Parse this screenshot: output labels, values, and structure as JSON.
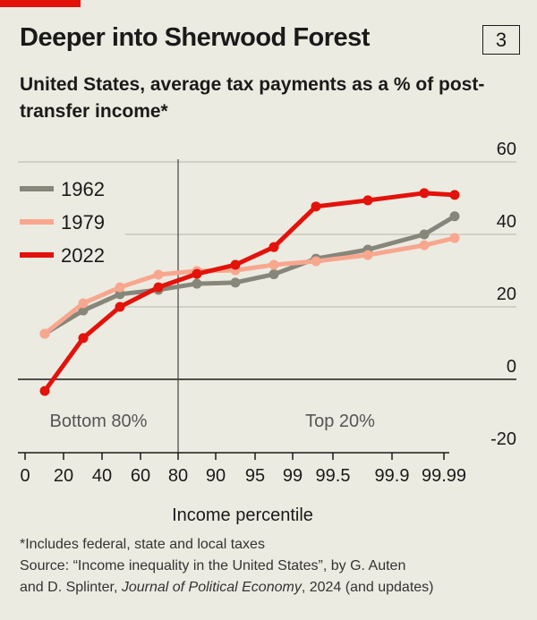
{
  "header": {
    "title": "Deeper into Sherwood Forest",
    "badge": "3",
    "subtitle": "United States, average tax payments as a % of post-transfer income*"
  },
  "chart_data": {
    "type": "line",
    "title": "Deeper into Sherwood Forest",
    "subtitle": "United States, average tax payments as a % of post-transfer income*",
    "xlabel": "Income percentile",
    "x_ticks": [
      "0",
      "20",
      "40",
      "60",
      "80",
      "90",
      "95",
      "99",
      "99.5",
      "99.9",
      "99.99"
    ],
    "y_ticks": [
      60,
      40,
      20,
      0,
      -20
    ],
    "ylim": [
      -20,
      60
    ],
    "grid": true,
    "legend": "top-left",
    "region_labels": [
      "Bottom 80%",
      "Top 20%"
    ],
    "series": [
      {
        "name": "1962",
        "color": "#86867a",
        "values": [
          12.6,
          19,
          23.5,
          24.7,
          26.4,
          26.7,
          29,
          33.3,
          35.8,
          40,
          45
        ]
      },
      {
        "name": "1979",
        "color": "#f8a78f",
        "values": [
          12.6,
          21,
          25.4,
          28.9,
          29.9,
          30.1,
          31.6,
          32.6,
          34.3,
          37,
          39
        ]
      },
      {
        "name": "2022",
        "color": "#e3120b",
        "values": [
          -3.2,
          11.4,
          20,
          25.4,
          29.1,
          31.6,
          36.5,
          47.7,
          49.4,
          51.4,
          50.9
        ]
      }
    ]
  },
  "footer": {
    "note": "*Includes federal, state and local taxes",
    "source_1": "Source: “Income inequality in the United States”, by G. Auten",
    "source_2a": "and D. Splinter, ",
    "source_2b": "Journal of Political Economy",
    "source_2c": ", 2024 (and updates)"
  }
}
